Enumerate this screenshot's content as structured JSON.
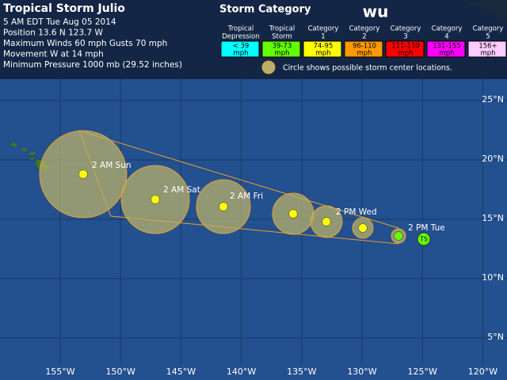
{
  "header": {
    "title": "Tropical Storm Julio",
    "lines": [
      "5 AM EDT Tue Aug 05 2014",
      "Position 13.6 N 123.7 W",
      "Maximum Winds 60 mph  Gusts 70 mph",
      "Movement W at 14 mph",
      "Minimum Pressure 1000 mb (29.52 inches)"
    ]
  },
  "legend": {
    "title": "Storm Category",
    "logo": "wu",
    "categories": [
      {
        "label": [
          "Tropical",
          "Depression"
        ],
        "range": [
          "< 39",
          "mph"
        ],
        "color": "#00ffff"
      },
      {
        "label": [
          "Tropical",
          "Storm"
        ],
        "range": [
          "39-73",
          "mph"
        ],
        "color": "#66ff00"
      },
      {
        "label": [
          "Category",
          "1"
        ],
        "range": [
          "74-95",
          "mph"
        ],
        "color": "#ffff00"
      },
      {
        "label": [
          "Category",
          "2"
        ],
        "range": [
          "96-110",
          "mph"
        ],
        "color": "#ff9900"
      },
      {
        "label": [
          "Category",
          "3"
        ],
        "range": [
          "111-130",
          "mph"
        ],
        "color": "#ff0000"
      },
      {
        "label": [
          "Category",
          "4"
        ],
        "range": [
          "131-155",
          "mph"
        ],
        "color": "#ff00ff"
      },
      {
        "label": [
          "Category",
          "5"
        ],
        "range": [
          "156+",
          "mph"
        ],
        "color": "#ffccff"
      }
    ],
    "note": "Circle shows possible storm center locations."
  },
  "map": {
    "lon_labels": [
      "155°W",
      "150°W",
      "145°W",
      "140°W",
      "135°W",
      "130°W",
      "125°W",
      "120°W"
    ],
    "lat_labels": [
      "25°N",
      "20°N",
      "15°N",
      "10°N",
      "5°N"
    ],
    "current": "TS",
    "forecast": [
      "2 PM Tue",
      null,
      "2 PM Wed",
      null,
      "2 AM Fri",
      "2 AM Sat",
      "2 AM Sun"
    ]
  }
}
